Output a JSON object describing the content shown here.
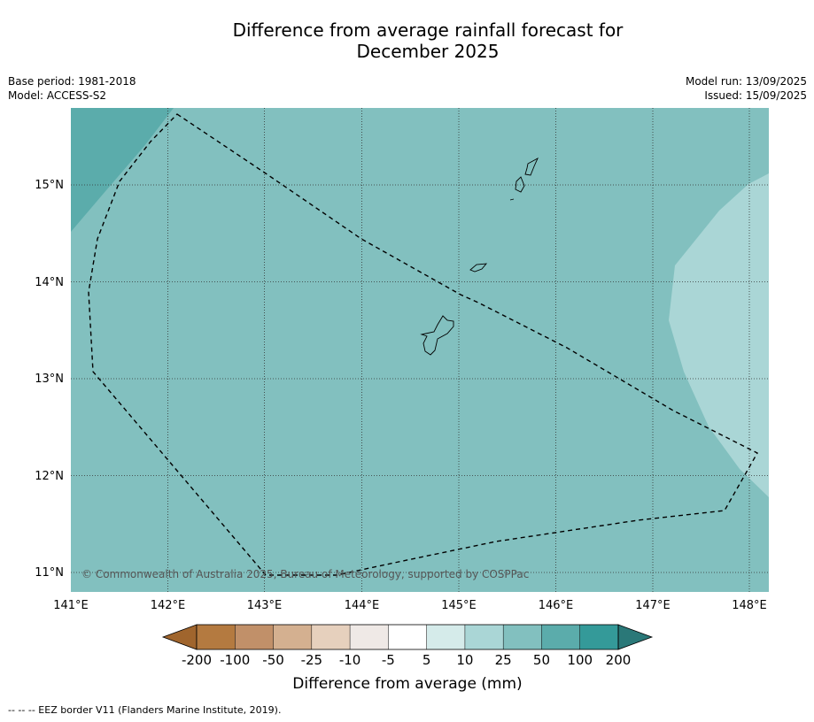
{
  "title": "Difference from average rainfall forecast for",
  "subtitle": "December 2025",
  "base_period": "Base period: 1981-2018",
  "model": "Model: ACCESS-S2",
  "model_run": "Model run: 13/09/2025",
  "issued": "Issued: 15/09/2025",
  "copyright": "© Commonwealth of Australia 2025, Bureau of Meteorology, supported by COSPPac",
  "footnote": "-- -- -- EEZ border V11 (Flanders Marine Institute, 2019).",
  "lat_labels": [
    "15°N",
    "14°N",
    "13°N",
    "12°N",
    "11°N"
  ],
  "lon_labels": [
    "141°E",
    "142°E",
    "143°E",
    "144°E",
    "145°E",
    "146°E",
    "147°E",
    "148°E"
  ],
  "colorbar": {
    "label": "Difference from average (mm)",
    "ticks": [
      "-200",
      "-100",
      "-50",
      "-25",
      "-10",
      "-5",
      "5",
      "10",
      "25",
      "50",
      "100",
      "200"
    ],
    "colors": [
      "#a0652d",
      "#b47a40",
      "#c19069",
      "#d4b090",
      "#e6d0bd",
      "#efe9e6",
      "#ffffff",
      "#d5ebea",
      "#aad6d6",
      "#82c0bf",
      "#5bacab",
      "#349a99",
      "#2a7878"
    ]
  },
  "map_colors": {
    "base": "#82c0bf",
    "high": "#5bacab",
    "low": "#aad6d6"
  }
}
